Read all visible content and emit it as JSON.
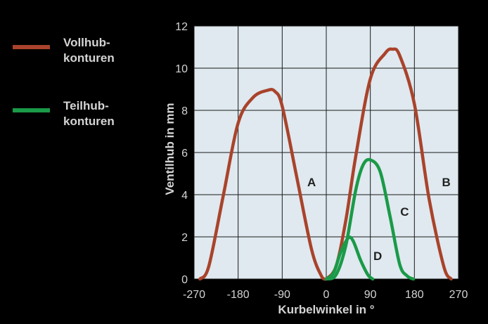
{
  "chart_data": {
    "type": "line",
    "xlabel": "Kurbelwinkel in °",
    "ylabel": "Ventilhub in mm",
    "xlim": [
      -270,
      270
    ],
    "ylim": [
      0,
      12
    ],
    "xticks": [
      -270,
      -180,
      -90,
      0,
      90,
      180,
      270
    ],
    "yticks": [
      0,
      2,
      4,
      6,
      8,
      10,
      12
    ],
    "xtick_labels": [
      "-270",
      "-180",
      "-90",
      "0",
      "90",
      "180",
      "270"
    ],
    "ytick_labels": [
      "0",
      "2",
      "4",
      "6",
      "8",
      "10",
      "12"
    ],
    "grid": true,
    "legend": {
      "position": "left",
      "entries": [
        {
          "line1": "Vollhub-",
          "line2": "konturen",
          "color": "#a9432b"
        },
        {
          "line1": "Teilhub-",
          "line2": "konturen",
          "color": "#1a9a48"
        }
      ]
    },
    "colors": {
      "background": "#000000",
      "plot_area": "#dfe9ef",
      "grid": "#1a1a1a",
      "text": "#d4d4d4",
      "curve_label": "#222222"
    },
    "series": [
      {
        "label": "A",
        "group": "Vollhub",
        "color": "#a9432b",
        "x": [
          -258,
          -240,
          -210,
          -180,
          -150,
          -120,
          -105,
          -90,
          -60,
          -30,
          -10,
          0
        ],
        "y": [
          0,
          0.6,
          4.0,
          7.4,
          8.6,
          8.95,
          8.9,
          8.2,
          4.8,
          1.4,
          0.15,
          0
        ]
      },
      {
        "label": "B",
        "group": "Vollhub",
        "color": "#a9432b",
        "x": [
          0,
          20,
          40,
          60,
          90,
          120,
          135,
          150,
          180,
          210,
          240,
          255
        ],
        "y": [
          0,
          0.6,
          2.8,
          5.8,
          9.5,
          10.7,
          10.9,
          10.6,
          8.3,
          3.8,
          0.6,
          0
        ]
      },
      {
        "label": "C",
        "group": "Teilhub",
        "color": "#1a9a48",
        "x": [
          0,
          20,
          40,
          60,
          75,
          90,
          110,
          130,
          150,
          165,
          178
        ],
        "y": [
          0,
          0.2,
          1.6,
          4.2,
          5.4,
          5.65,
          5.1,
          3.0,
          0.7,
          0.15,
          0
        ]
      },
      {
        "label": "D",
        "group": "Teilhub",
        "color": "#1a9a48",
        "x": [
          0,
          15,
          30,
          45,
          55,
          70,
          85,
          95
        ],
        "y": [
          0,
          0.3,
          1.3,
          1.95,
          1.8,
          0.9,
          0.2,
          0
        ]
      }
    ]
  }
}
